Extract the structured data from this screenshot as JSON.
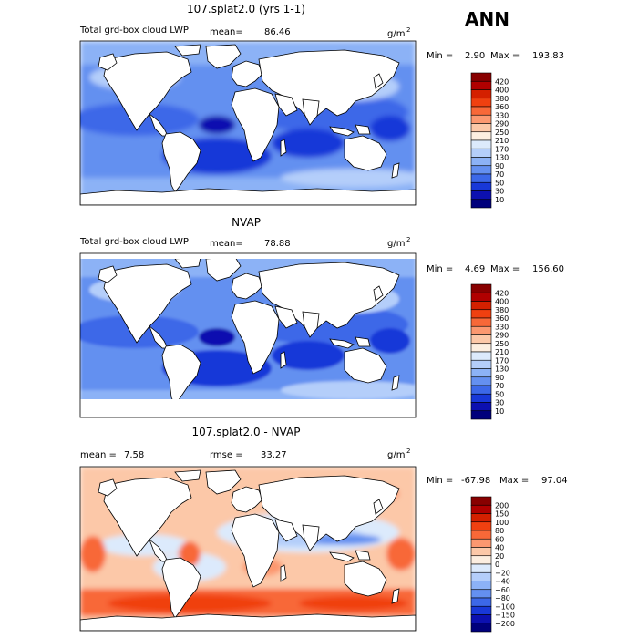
{
  "season": "ANN",
  "units_base": "g/m",
  "units_exp": "2",
  "panels": [
    {
      "title": "107.splat2.0 (yrs 1-1)",
      "field_label": "Total grd-box cloud LWP",
      "stat_label": "mean=",
      "stat_value": "86.46",
      "min_label": "Min =",
      "min_value": "2.90",
      "max_label": "Max =",
      "max_value": "193.83",
      "colorbar": [
        "420",
        "400",
        "380",
        "360",
        "330",
        "290",
        "250",
        "210",
        "170",
        "130",
        "90",
        "70",
        "50",
        "30",
        "10"
      ]
    },
    {
      "title": "NVAP",
      "field_label": "Total grd-box cloud LWP",
      "stat_label": "mean=",
      "stat_value": "78.88",
      "min_label": "Min =",
      "min_value": "4.69",
      "max_label": "Max =",
      "max_value": "156.60",
      "colorbar": [
        "420",
        "400",
        "380",
        "360",
        "330",
        "290",
        "250",
        "210",
        "170",
        "130",
        "90",
        "70",
        "50",
        "30",
        "10"
      ]
    },
    {
      "title": "107.splat2.0 - NVAP",
      "mean_label": "mean =",
      "mean_value": "7.58",
      "rmse_label": "rmse =",
      "rmse_value": "33.27",
      "min_label": "Min =",
      "min_value": "-67.98",
      "max_label": "Max =",
      "max_value": "97.04",
      "colorbar": [
        "200",
        "150",
        "100",
        "80",
        "60",
        "40",
        "20",
        "0",
        "−20",
        "−40",
        "−60",
        "−80",
        "−100",
        "−150",
        "−200"
      ]
    }
  ],
  "colors": {
    "abs_scale": [
      "#880000",
      "#b00000",
      "#d42000",
      "#f04010",
      "#f86838",
      "#fc9870",
      "#fcc8a8",
      "#fceee0",
      "#dceafc",
      "#b4cefa",
      "#8cb2f6",
      "#6490f0",
      "#3c68e8",
      "#1838d8",
      "#0c10b0",
      "#00007c"
    ],
    "diff_scale": [
      "#880000",
      "#b00000",
      "#d42000",
      "#f04010",
      "#f86838",
      "#fc9870",
      "#fcc8a8",
      "#fceee0",
      "#dceafc",
      "#b4cefa",
      "#8cb2f6",
      "#6490f0",
      "#3c68e8",
      "#1838d8",
      "#0c10b0",
      "#00007c"
    ],
    "land": "#ffffff",
    "coast": "#000000"
  }
}
